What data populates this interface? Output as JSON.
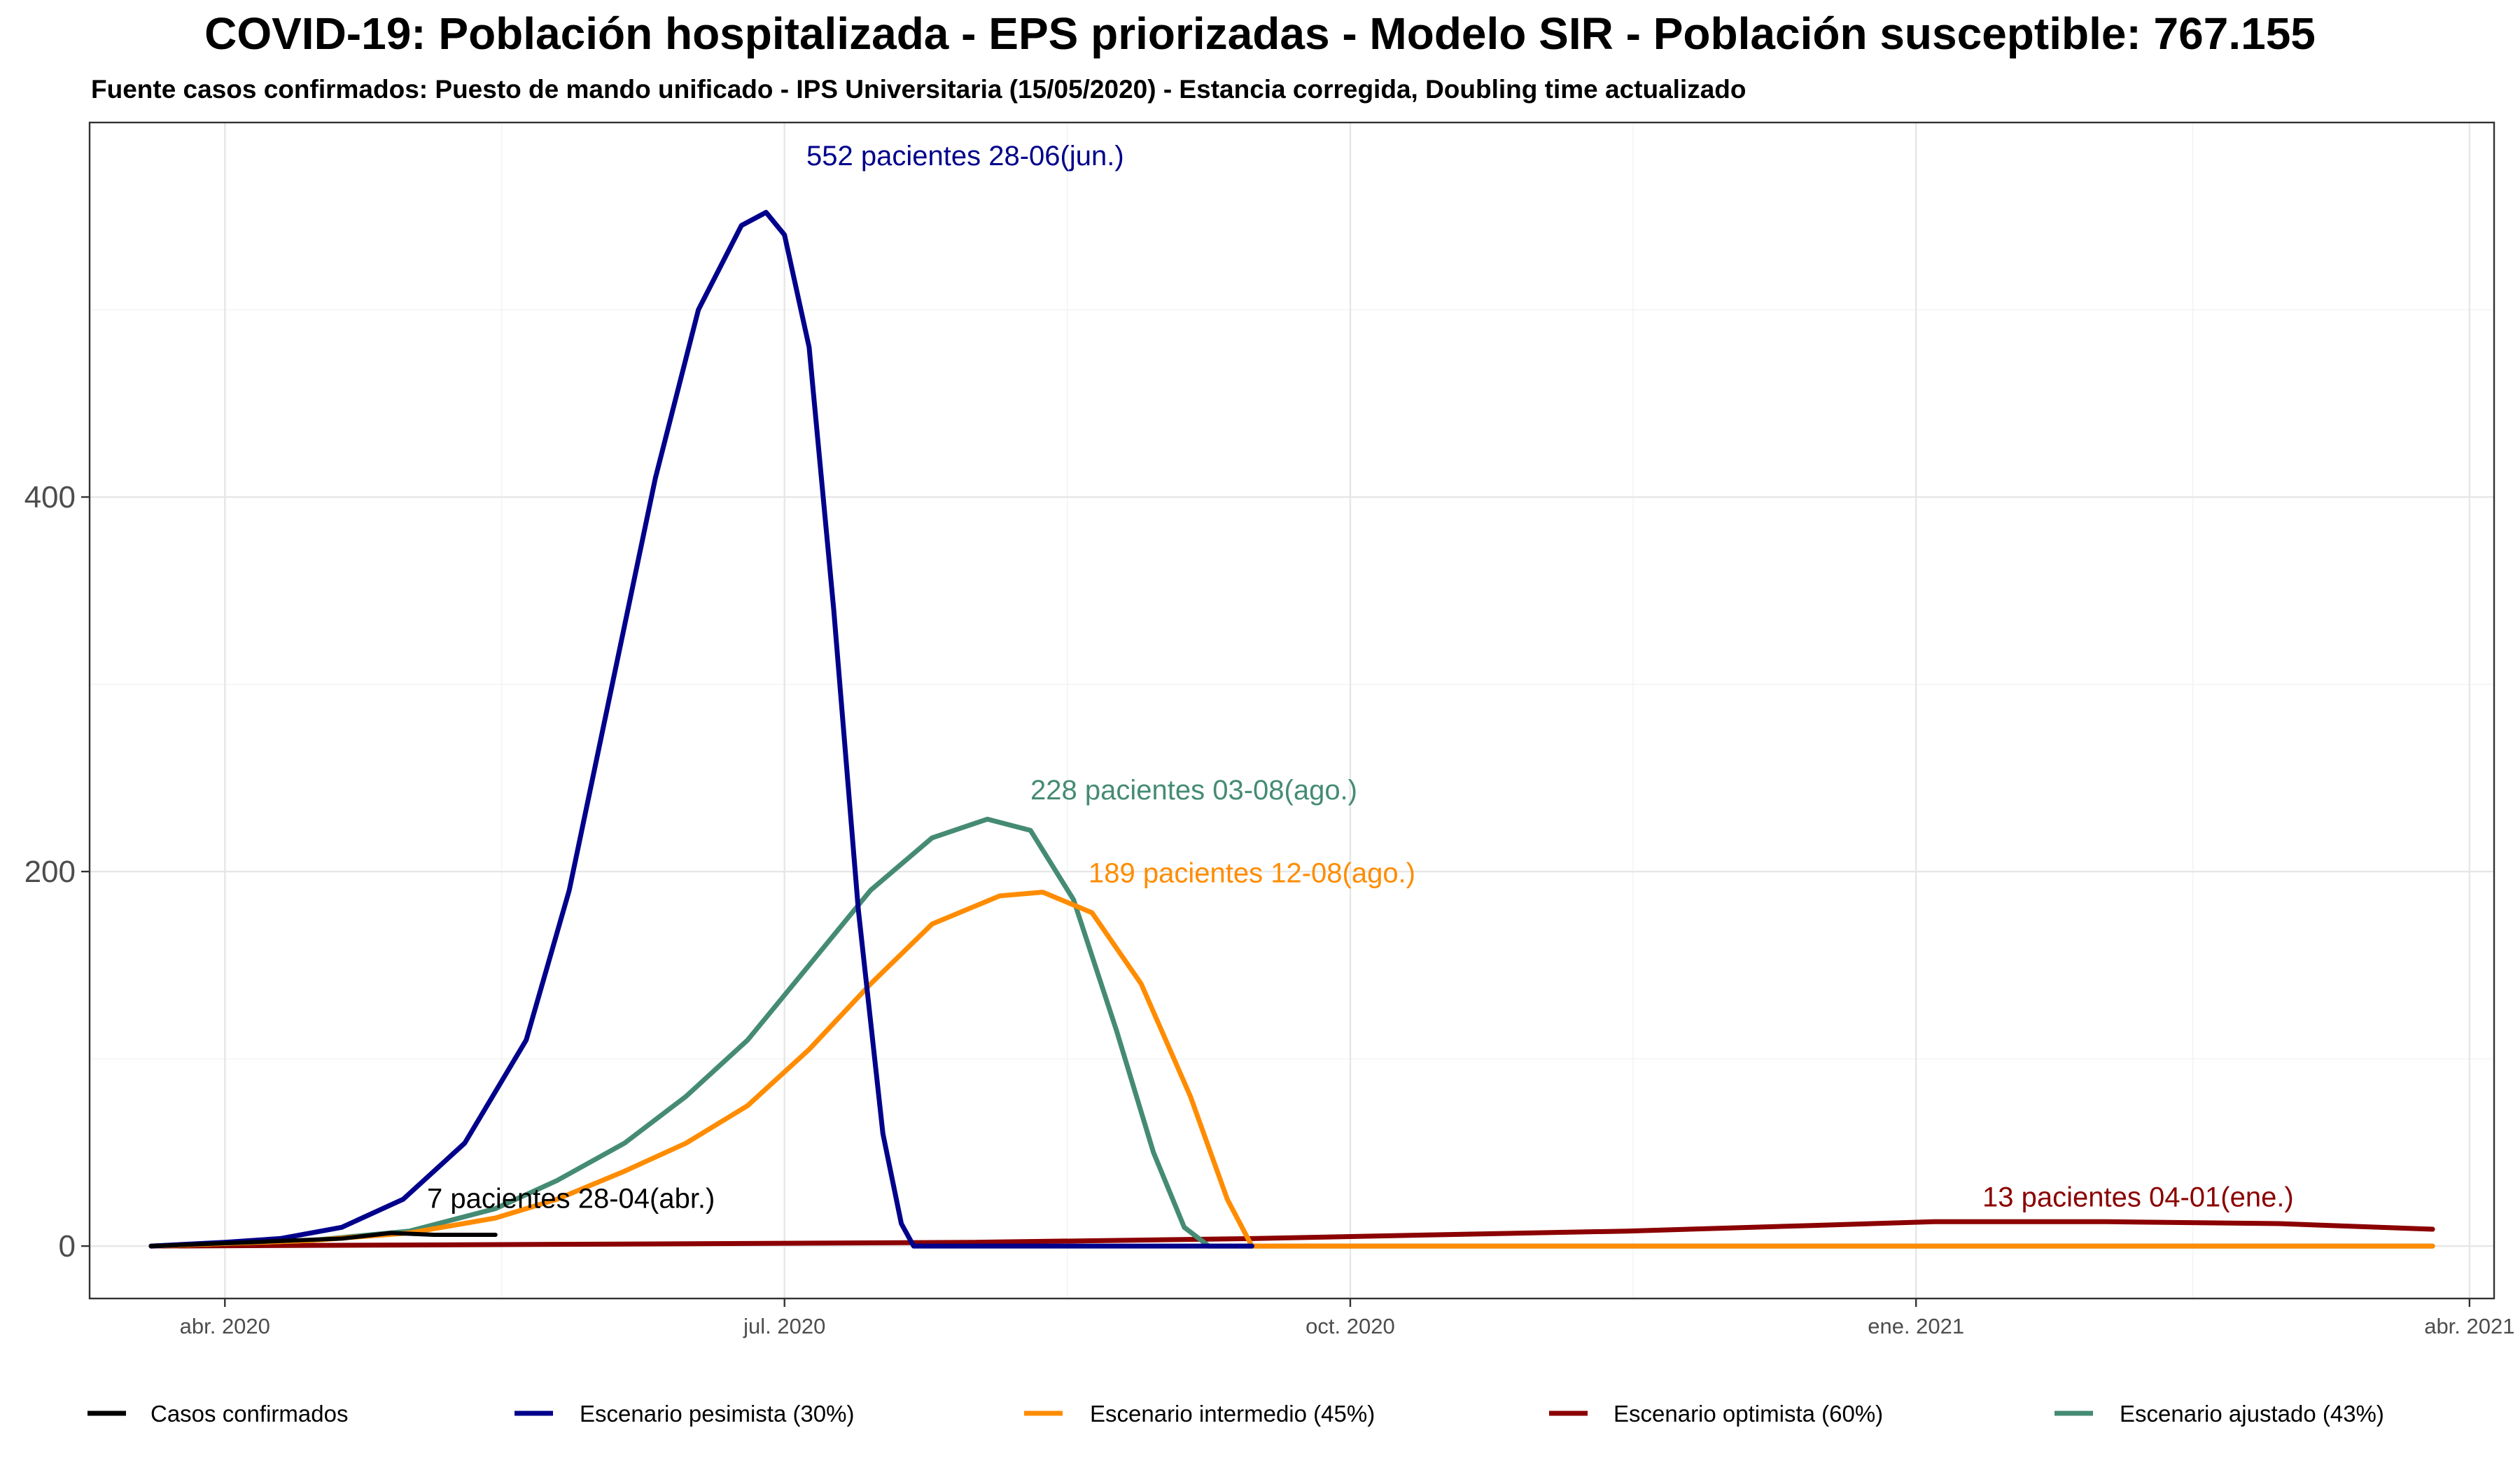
{
  "chart_data": {
    "type": "line",
    "title": "COVID-19: Población hospitalizada - EPS priorizadas - Modelo SIR - Población susceptible: 767.155",
    "subtitle": "Fuente casos confirmados: Puesto de mando unificado - IPS Universitaria (15/05/2020) - Estancia corregida, Doubling time actualizado",
    "xlabel": "",
    "ylabel": "",
    "x_type": "date",
    "xlim": [
      "2020-03-10",
      "2021-04-05"
    ],
    "ylim": [
      -28,
      600
    ],
    "x_ticks": [
      {
        "date": "2020-04-01",
        "label": "abr. 2020"
      },
      {
        "date": "2020-07-01",
        "label": "jul. 2020"
      },
      {
        "date": "2020-10-01",
        "label": "oct. 2020"
      },
      {
        "date": "2021-01-01",
        "label": "ene. 2021"
      },
      {
        "date": "2021-04-01",
        "label": "abr. 2021"
      }
    ],
    "y_ticks": [
      0,
      200,
      400
    ],
    "grid": true,
    "legend_position": "bottom",
    "series": [
      {
        "name": "Casos confirmados",
        "color": "#000000",
        "points": [
          [
            "2020-03-20",
            0
          ],
          [
            "2020-03-28",
            1
          ],
          [
            "2020-04-05",
            2
          ],
          [
            "2020-04-12",
            3
          ],
          [
            "2020-04-20",
            4
          ],
          [
            "2020-04-28",
            7
          ],
          [
            "2020-05-05",
            6
          ],
          [
            "2020-05-15",
            6
          ]
        ]
      },
      {
        "name": "Escenario pesimista (30%)",
        "color": "#00008B",
        "points": [
          [
            "2020-03-20",
            0
          ],
          [
            "2020-04-01",
            2
          ],
          [
            "2020-04-10",
            4
          ],
          [
            "2020-04-20",
            10
          ],
          [
            "2020-04-30",
            25
          ],
          [
            "2020-05-10",
            55
          ],
          [
            "2020-05-20",
            110
          ],
          [
            "2020-05-27",
            190
          ],
          [
            "2020-06-03",
            300
          ],
          [
            "2020-06-10",
            410
          ],
          [
            "2020-06-17",
            500
          ],
          [
            "2020-06-24",
            545
          ],
          [
            "2020-06-28",
            552
          ],
          [
            "2020-07-01",
            540
          ],
          [
            "2020-07-05",
            480
          ],
          [
            "2020-07-09",
            340
          ],
          [
            "2020-07-13",
            180
          ],
          [
            "2020-07-17",
            60
          ],
          [
            "2020-07-20",
            12
          ],
          [
            "2020-07-22",
            0
          ],
          [
            "2020-09-15",
            0
          ]
        ]
      },
      {
        "name": "Escenario intermedio (45%)",
        "color": "#FF8C00",
        "points": [
          [
            "2020-03-20",
            0
          ],
          [
            "2020-04-15",
            3
          ],
          [
            "2020-05-01",
            7
          ],
          [
            "2020-05-15",
            15
          ],
          [
            "2020-05-25",
            25
          ],
          [
            "2020-06-05",
            40
          ],
          [
            "2020-06-15",
            55
          ],
          [
            "2020-06-25",
            75
          ],
          [
            "2020-07-05",
            105
          ],
          [
            "2020-07-15",
            140
          ],
          [
            "2020-07-25",
            172
          ],
          [
            "2020-08-05",
            187
          ],
          [
            "2020-08-12",
            189
          ],
          [
            "2020-08-20",
            178
          ],
          [
            "2020-08-28",
            140
          ],
          [
            "2020-09-05",
            80
          ],
          [
            "2020-09-11",
            25
          ],
          [
            "2020-09-15",
            0
          ],
          [
            "2021-03-26",
            0
          ]
        ]
      },
      {
        "name": "Escenario optimista (60%)",
        "color": "#8B0000",
        "points": [
          [
            "2020-03-20",
            0
          ],
          [
            "2020-06-01",
            1
          ],
          [
            "2020-08-01",
            2
          ],
          [
            "2020-09-15",
            4
          ],
          [
            "2020-10-15",
            6
          ],
          [
            "2020-11-15",
            8
          ],
          [
            "2020-12-15",
            11
          ],
          [
            "2021-01-04",
            13
          ],
          [
            "2021-02-01",
            13
          ],
          [
            "2021-03-01",
            12
          ],
          [
            "2021-03-26",
            9
          ]
        ]
      },
      {
        "name": "Escenario ajustado (43%)",
        "color": "#458B74",
        "points": [
          [
            "2020-03-20",
            0
          ],
          [
            "2020-04-15",
            3
          ],
          [
            "2020-05-01",
            8
          ],
          [
            "2020-05-15",
            20
          ],
          [
            "2020-05-25",
            35
          ],
          [
            "2020-06-05",
            55
          ],
          [
            "2020-06-15",
            80
          ],
          [
            "2020-06-25",
            110
          ],
          [
            "2020-07-05",
            150
          ],
          [
            "2020-07-15",
            190
          ],
          [
            "2020-07-25",
            218
          ],
          [
            "2020-08-03",
            228
          ],
          [
            "2020-08-10",
            222
          ],
          [
            "2020-08-17",
            185
          ],
          [
            "2020-08-24",
            115
          ],
          [
            "2020-08-30",
            50
          ],
          [
            "2020-09-04",
            10
          ],
          [
            "2020-09-08",
            0
          ],
          [
            "2021-03-26",
            0
          ]
        ]
      }
    ],
    "annotations": [
      {
        "text": "552 pacientes 28-06(jun.)",
        "date": "2020-06-28",
        "y": 552,
        "color": "#00008B"
      },
      {
        "text": "228 pacientes 03-08(ago.)",
        "date": "2020-08-03",
        "y": 228,
        "color": "#458B74"
      },
      {
        "text": "189 pacientes 12-08(ago.)",
        "date": "2020-08-12",
        "y": 189,
        "color": "#FF8C00"
      },
      {
        "text": "7 pacientes 28-04(abr.)",
        "date": "2020-04-28",
        "y": 7,
        "color": "#000000"
      },
      {
        "text": "13 pacientes 04-01(ene.)",
        "date": "2021-01-04",
        "y": 13,
        "color": "#8B0000"
      }
    ]
  }
}
